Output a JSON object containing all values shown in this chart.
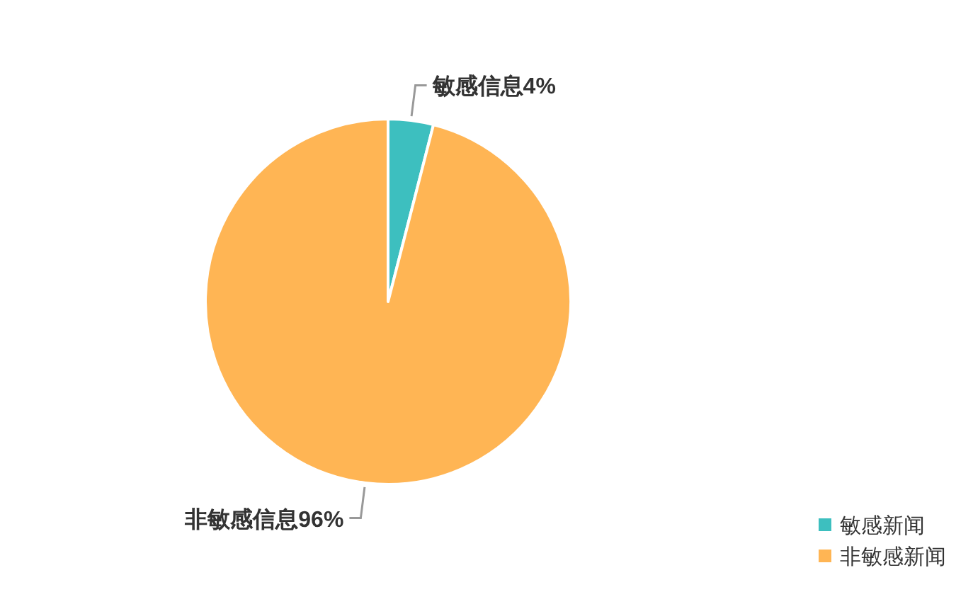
{
  "chart_data": {
    "type": "pie",
    "categories": [
      "敏感新闻",
      "非敏感新闻"
    ],
    "values": [
      4,
      96
    ],
    "colors": [
      "#3dbfbf",
      "#ffb554"
    ],
    "value_labels": [
      "敏感信息4%",
      "非敏感信息96%"
    ],
    "legend": "bottom right"
  }
}
